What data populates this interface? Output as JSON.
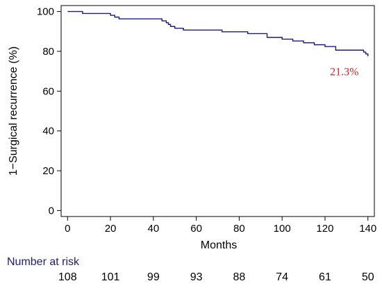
{
  "chart_data": {
    "type": "line",
    "title": "",
    "xlabel": "Months",
    "ylabel": "1−Surgical recurrence (%)",
    "xlim": [
      -3,
      143
    ],
    "ylim": [
      -3,
      103
    ],
    "xticks": [
      0,
      20,
      40,
      60,
      80,
      100,
      120,
      140
    ],
    "yticks": [
      0,
      20,
      40,
      60,
      80,
      100
    ],
    "grid": false,
    "curve_style": "step",
    "series": [
      {
        "color": "#1a1a80",
        "x": [
          0,
          7,
          20,
          22,
          24,
          44,
          46,
          47,
          48,
          50,
          54,
          72,
          84,
          93,
          100,
          105,
          110,
          115,
          120,
          125,
          138,
          139,
          140
        ],
        "y": [
          100,
          99,
          98.1,
          97.2,
          96.3,
          95.3,
          94.4,
          93.5,
          92.5,
          91.6,
          90.7,
          89.8,
          88.9,
          87.0,
          86.1,
          85.2,
          84.3,
          83.3,
          82.4,
          80.6,
          79.6,
          78.7,
          77.5
        ]
      }
    ],
    "annotations": [
      {
        "text": "21.3%",
        "x": 129,
        "y": 68,
        "color": "#e0202a"
      }
    ],
    "number_at_risk": {
      "title": "Number at risk",
      "x": [
        0,
        20,
        40,
        60,
        80,
        100,
        120,
        140
      ],
      "values": [
        "108",
        "101",
        "99",
        "93",
        "88",
        "74",
        "61",
        "50"
      ]
    }
  }
}
